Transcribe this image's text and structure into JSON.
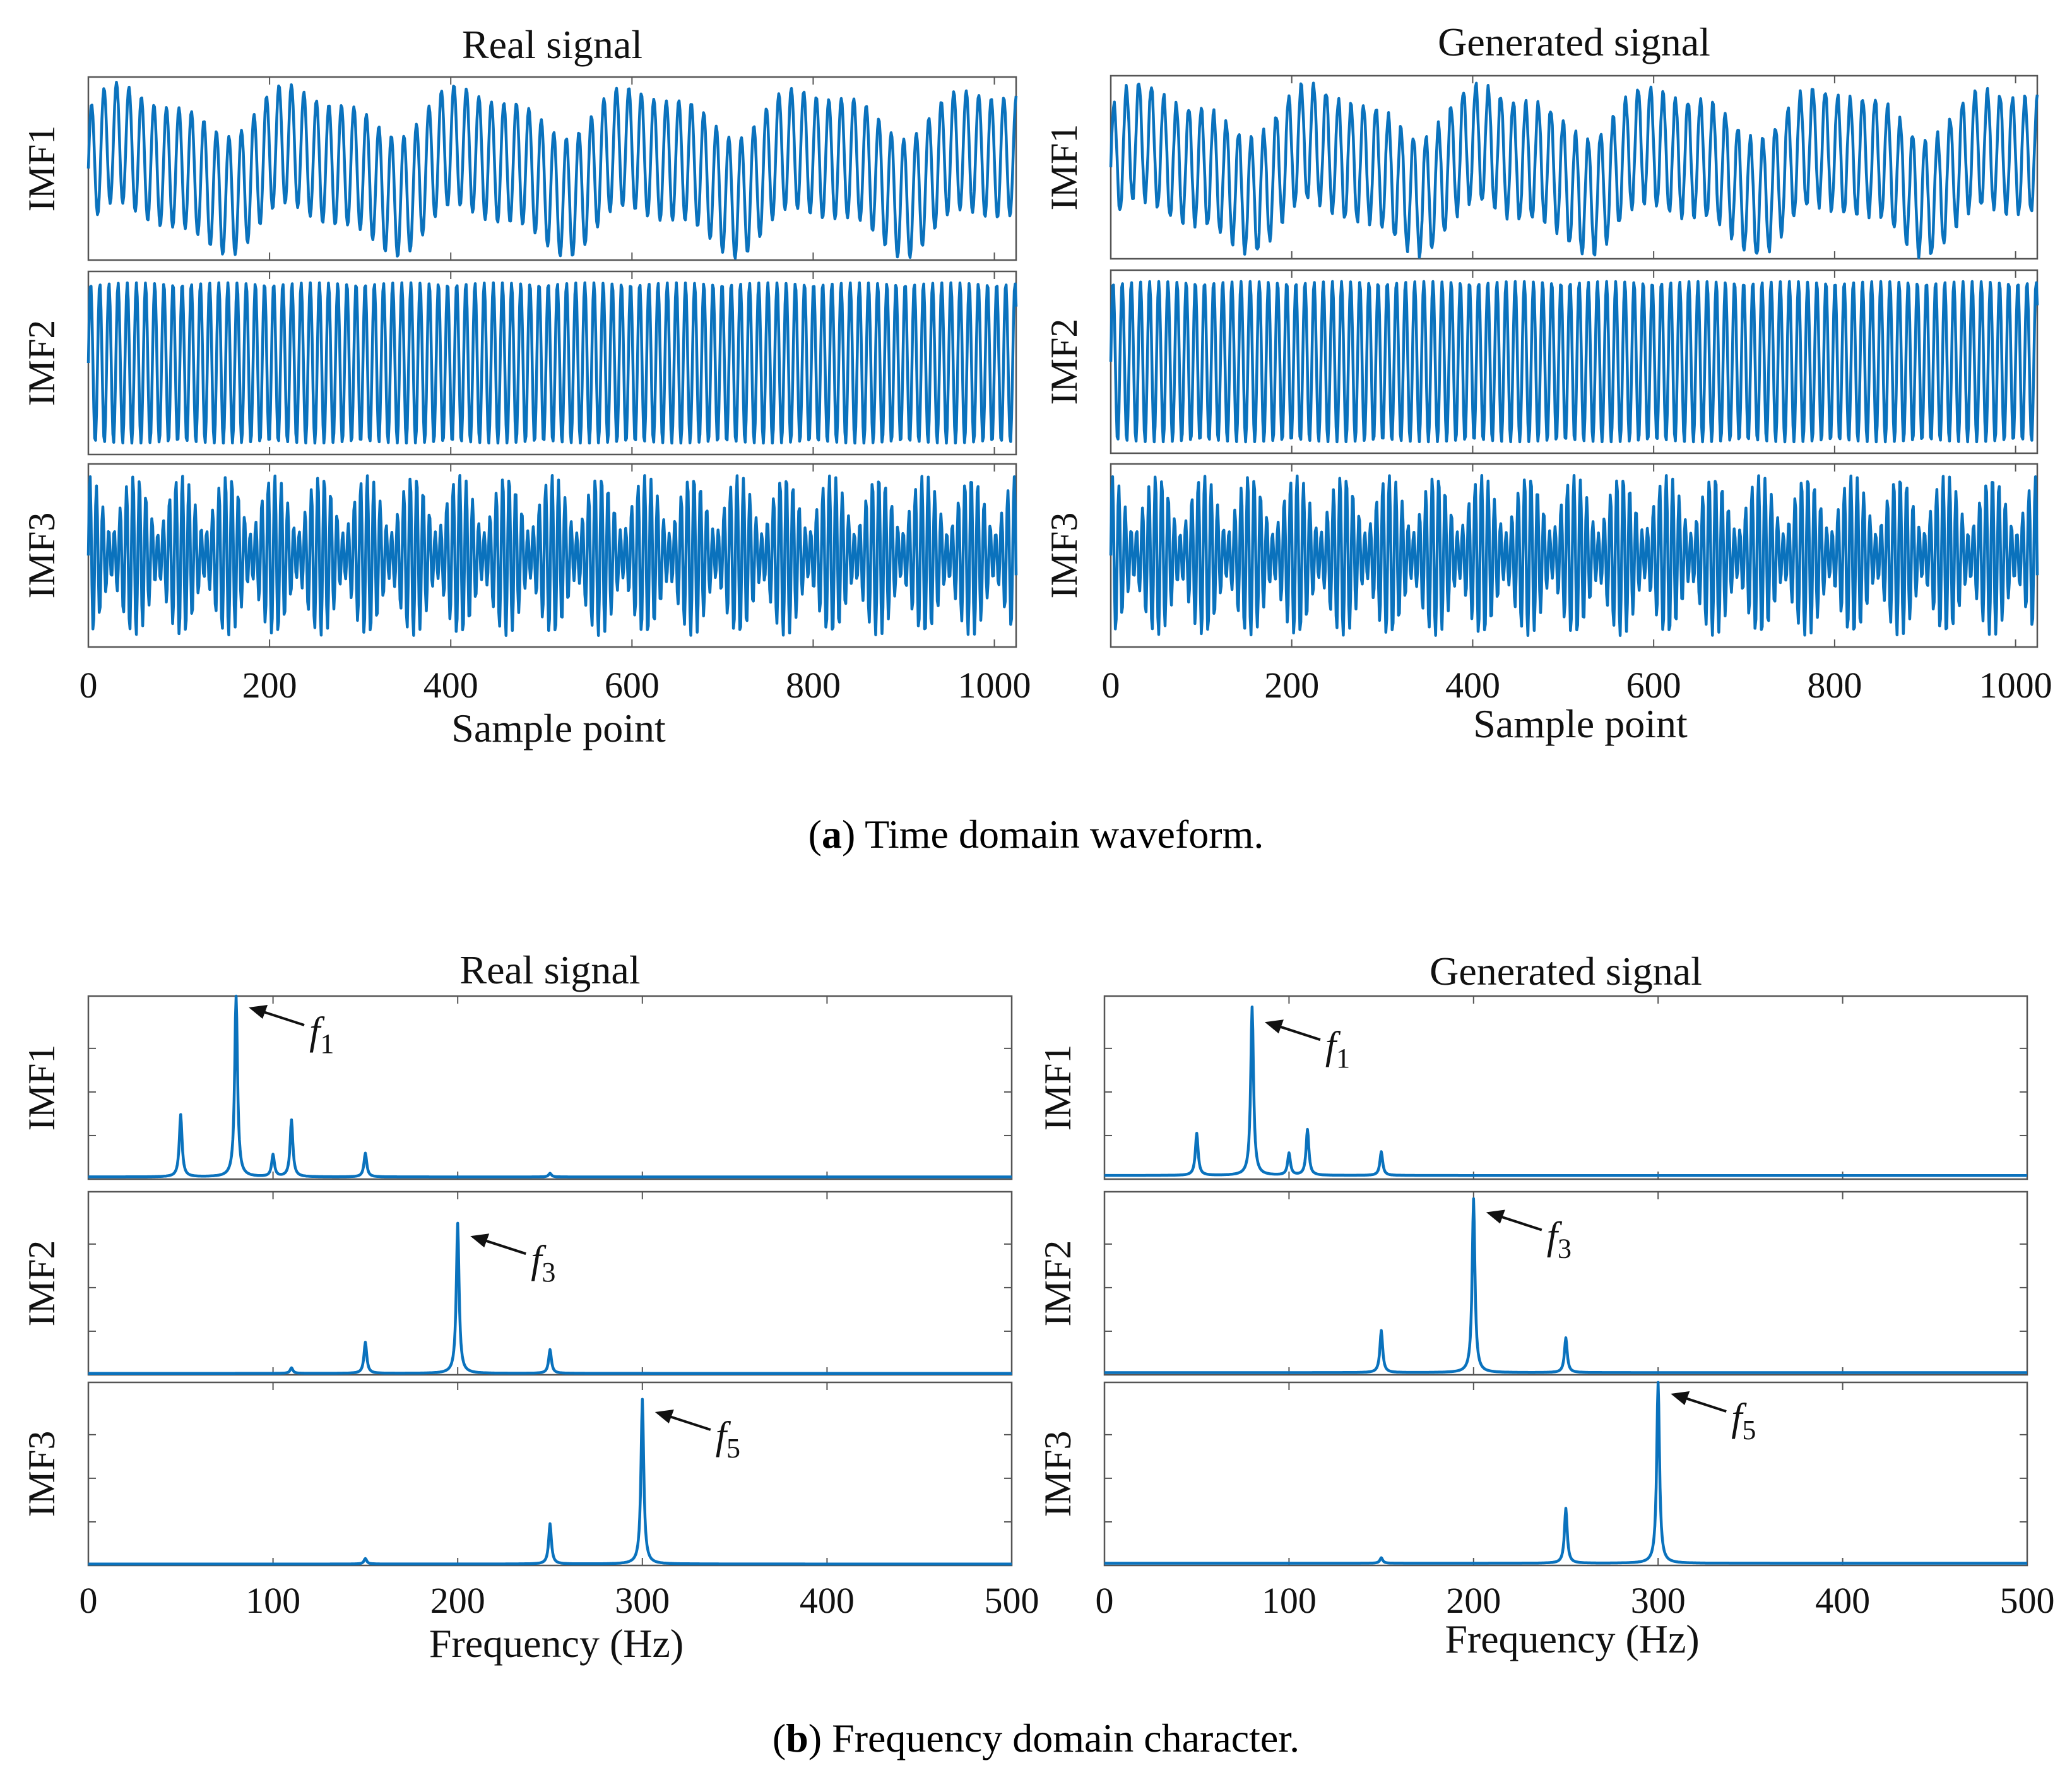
{
  "colors": {
    "line": "#0a72bd",
    "axis": "#555555",
    "text": "#111111"
  },
  "captions": {
    "a_letter": "a",
    "a_text": " Time domain waveform.",
    "b_letter": "b",
    "b_text": " Frequency domain character."
  },
  "chart_data": [
    {
      "id": "time-real",
      "type": "line",
      "title": "Real signal",
      "xlabel": "Sample point",
      "xlim": [
        0,
        1024
      ],
      "xticks": [
        0,
        200,
        400,
        600,
        800,
        1000
      ],
      "series": [
        {
          "panel_label": "IMF1",
          "x_range": [
            0,
            1024
          ],
          "samples": 1024,
          "ylim": [
            -1.1,
            1.1
          ],
          "components": [
            {
              "freq": 0.0725,
              "amp": 0.72
            },
            {
              "freq": 0.0053,
              "amp": 0.25
            },
            {
              "freq": 0.0108,
              "amp": 0.12
            }
          ]
        },
        {
          "panel_label": "IMF2",
          "x_range": [
            0,
            1024
          ],
          "samples": 1024,
          "ylim": [
            -1.05,
            1.05
          ],
          "components": [
            {
              "freq": 0.099,
              "amp": 0.92
            }
          ]
        },
        {
          "panel_label": "IMF3",
          "x_range": [
            0,
            1024
          ],
          "samples": 1024,
          "ylim": [
            -1.1,
            1.1
          ],
          "components": [
            {
              "freq": 0.147,
              "amp": 0.62
            },
            {
              "freq": 0.1275,
              "amp": 0.35
            }
          ]
        }
      ]
    },
    {
      "id": "time-generated",
      "type": "line",
      "title": "Generated signal",
      "xlabel": "Sample point",
      "xlim": [
        0,
        1024
      ],
      "xticks": [
        0,
        200,
        400,
        600,
        800,
        1000
      ],
      "series": [
        {
          "panel_label": "IMF1",
          "x_range": [
            0,
            1024
          ],
          "samples": 1024,
          "ylim": [
            -1.1,
            1.1
          ],
          "components": [
            {
              "freq": 0.0725,
              "amp": 0.7
            },
            {
              "freq": 0.0053,
              "amp": 0.26
            },
            {
              "freq": 0.0108,
              "amp": 0.12
            },
            {
              "freq": 0.31,
              "amp": 0.04
            }
          ]
        },
        {
          "panel_label": "IMF2",
          "x_range": [
            0,
            1024
          ],
          "samples": 1024,
          "ylim": [
            -1.05,
            1.05
          ],
          "components": [
            {
              "freq": 0.099,
              "amp": 0.92
            }
          ]
        },
        {
          "panel_label": "IMF3",
          "x_range": [
            0,
            1024
          ],
          "samples": 1024,
          "ylim": [
            -1.1,
            1.1
          ],
          "components": [
            {
              "freq": 0.147,
              "amp": 0.62
            },
            {
              "freq": 0.1275,
              "amp": 0.35
            }
          ]
        }
      ]
    },
    {
      "id": "freq-real",
      "type": "line",
      "title": "Real signal",
      "xlabel": "Frequency (Hz)",
      "xlim": [
        0,
        500
      ],
      "xticks": [
        0,
        100,
        200,
        300,
        400,
        500
      ],
      "series": [
        {
          "panel_label": "IMF1",
          "ylim": [
            0,
            1.0
          ],
          "baseline": 0.012,
          "peaks": [
            {
              "f": 50,
              "a": 0.34
            },
            {
              "f": 80,
              "a": 1.0,
              "label": "f",
              "sub": "1"
            },
            {
              "f": 100,
              "a": 0.12
            },
            {
              "f": 110,
              "a": 0.31
            },
            {
              "f": 150,
              "a": 0.13
            },
            {
              "f": 250,
              "a": 0.02
            }
          ]
        },
        {
          "panel_label": "IMF2",
          "ylim": [
            0,
            1.0
          ],
          "baseline": 0.008,
          "peaks": [
            {
              "f": 110,
              "a": 0.03
            },
            {
              "f": 150,
              "a": 0.17
            },
            {
              "f": 200,
              "a": 0.82,
              "label": "f",
              "sub": "3"
            },
            {
              "f": 250,
              "a": 0.13
            }
          ]
        },
        {
          "panel_label": "IMF3",
          "ylim": [
            0,
            1.0
          ],
          "baseline": 0.008,
          "peaks": [
            {
              "f": 150,
              "a": 0.03
            },
            {
              "f": 250,
              "a": 0.22
            },
            {
              "f": 300,
              "a": 0.9,
              "label": "f",
              "sub": "5"
            }
          ]
        }
      ]
    },
    {
      "id": "freq-generated",
      "type": "line",
      "title": "Generated signal",
      "xlabel": "Frequency (Hz)",
      "xlim": [
        0,
        500
      ],
      "xticks": [
        0,
        100,
        200,
        300,
        400,
        500
      ],
      "series": [
        {
          "panel_label": "IMF1",
          "ylim": [
            0,
            1.0
          ],
          "baseline": 0.02,
          "peaks": [
            {
              "f": 50,
              "a": 0.23
            },
            {
              "f": 80,
              "a": 0.92,
              "label": "f",
              "sub": "1"
            },
            {
              "f": 100,
              "a": 0.12
            },
            {
              "f": 110,
              "a": 0.25
            },
            {
              "f": 150,
              "a": 0.13
            }
          ]
        },
        {
          "panel_label": "IMF2",
          "ylim": [
            0,
            1.0
          ],
          "baseline": 0.012,
          "peaks": [
            {
              "f": 150,
              "a": 0.23
            },
            {
              "f": 200,
              "a": 0.95,
              "label": "f",
              "sub": "3"
            },
            {
              "f": 250,
              "a": 0.19
            }
          ]
        },
        {
          "panel_label": "IMF3",
          "ylim": [
            0,
            1.0
          ],
          "baseline": 0.012,
          "peaks": [
            {
              "f": 150,
              "a": 0.03
            },
            {
              "f": 250,
              "a": 0.3
            },
            {
              "f": 300,
              "a": 1.0,
              "label": "f",
              "sub": "5"
            }
          ]
        }
      ]
    }
  ]
}
